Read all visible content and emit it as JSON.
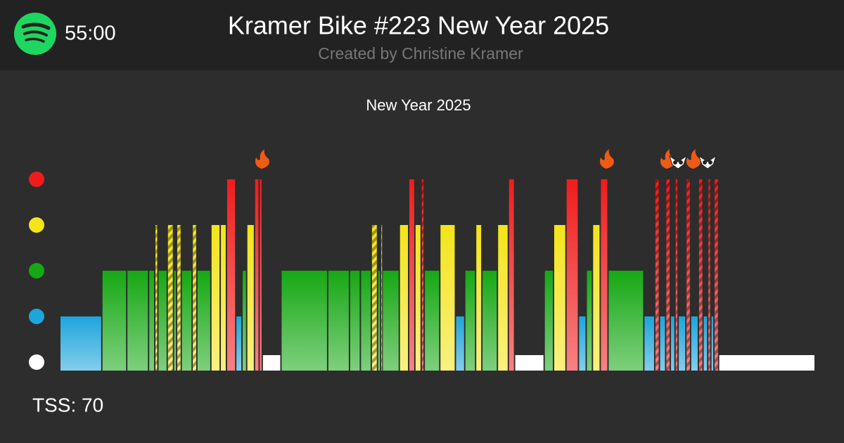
{
  "header": {
    "time": "55:00",
    "title": "Kramer Bike #223 New Year 2025",
    "subtitle": "Created by Christine Kramer"
  },
  "chart_data": {
    "type": "workout",
    "title": "New Year 2025",
    "zone_colors": [
      "#ffffff",
      "#1ea5dc",
      "#16a814",
      "#f4e41a",
      "#f01c1c"
    ],
    "segments": [
      {
        "zone": 2,
        "duration": 2.7
      },
      {
        "zone": 3,
        "duration": 1.6
      },
      {
        "zone": 3,
        "duration": 1.4
      },
      {
        "zone": 3,
        "duration": 0.4
      },
      {
        "zone": 4,
        "duration": 0.2,
        "striped": true
      },
      {
        "zone": 3,
        "duration": 0.6
      },
      {
        "zone": 4,
        "duration": 0.4,
        "striped": true
      },
      {
        "zone": 3,
        "duration": 0.2
      },
      {
        "zone": 4,
        "duration": 0.3,
        "striped": true
      },
      {
        "zone": 3,
        "duration": 0.7
      },
      {
        "zone": 4,
        "duration": 0.3,
        "striped": true
      },
      {
        "zone": 3,
        "duration": 0.9
      },
      {
        "zone": 4,
        "duration": 0.6
      },
      {
        "zone": 4,
        "duration": 0.4
      },
      {
        "zone": 5,
        "duration": 0.6
      },
      {
        "zone": 2,
        "duration": 0.4
      },
      {
        "zone": 3,
        "duration": 0.3
      },
      {
        "zone": 4,
        "duration": 0.5
      },
      {
        "zone": 5,
        "duration": 0.3
      },
      {
        "zone": 5,
        "duration": 0.2
      },
      {
        "zone": 1,
        "duration": 1.2
      },
      {
        "zone": 3,
        "duration": 3.0
      },
      {
        "zone": 3,
        "duration": 1.4
      },
      {
        "zone": 3,
        "duration": 0.7
      },
      {
        "zone": 3,
        "duration": 0.7
      },
      {
        "zone": 4,
        "duration": 0.4,
        "striped": true
      },
      {
        "zone": 3,
        "duration": 0.2
      },
      {
        "zone": 4,
        "duration": 0.1,
        "striped": true
      },
      {
        "zone": 3,
        "duration": 1.1
      },
      {
        "zone": 4,
        "duration": 0.6
      },
      {
        "zone": 5,
        "duration": 0.4
      },
      {
        "zone": 4,
        "duration": 0.4
      },
      {
        "zone": 5,
        "duration": 0.2,
        "striped": true
      },
      {
        "zone": 3,
        "duration": 1.0
      },
      {
        "zone": 4,
        "duration": 1.0
      },
      {
        "zone": 2,
        "duration": 0.6
      },
      {
        "zone": 3,
        "duration": 0.7
      },
      {
        "zone": 4,
        "duration": 0.4
      },
      {
        "zone": 3,
        "duration": 1.0
      },
      {
        "zone": 4,
        "duration": 0.7
      },
      {
        "zone": 5,
        "duration": 0.4
      },
      {
        "zone": 1,
        "duration": 1.9
      },
      {
        "zone": 3,
        "duration": 0.6
      },
      {
        "zone": 4,
        "duration": 0.8
      },
      {
        "zone": 5,
        "duration": 0.8
      },
      {
        "zone": 2,
        "duration": 0.5
      },
      {
        "zone": 3,
        "duration": 0.4
      },
      {
        "zone": 4,
        "duration": 0.5
      },
      {
        "zone": 5,
        "duration": 0.5
      },
      {
        "zone": 3,
        "duration": 2.3
      },
      {
        "zone": 2,
        "duration": 0.7
      },
      {
        "zone": 5,
        "duration": 0.3,
        "striped": true
      },
      {
        "zone": 2,
        "duration": 0.4
      },
      {
        "zone": 5,
        "duration": 0.3,
        "striped": true
      },
      {
        "zone": 2,
        "duration": 0.3
      },
      {
        "zone": 5,
        "duration": 0.2,
        "striped": true
      },
      {
        "zone": 2,
        "duration": 0.5
      },
      {
        "zone": 5,
        "duration": 0.3,
        "striped": true
      },
      {
        "zone": 2,
        "duration": 0.5
      },
      {
        "zone": 5,
        "duration": 0.3,
        "striped": true
      },
      {
        "zone": 2,
        "duration": 0.3
      },
      {
        "zone": 5,
        "duration": 0.2,
        "striped": true
      },
      {
        "zone": 2,
        "duration": 0.2
      },
      {
        "zone": 5,
        "duration": 0.3,
        "striped": true
      },
      {
        "zone": 1,
        "duration": 6.2
      }
    ]
  },
  "footer": {
    "tss": "TSS: 70"
  }
}
